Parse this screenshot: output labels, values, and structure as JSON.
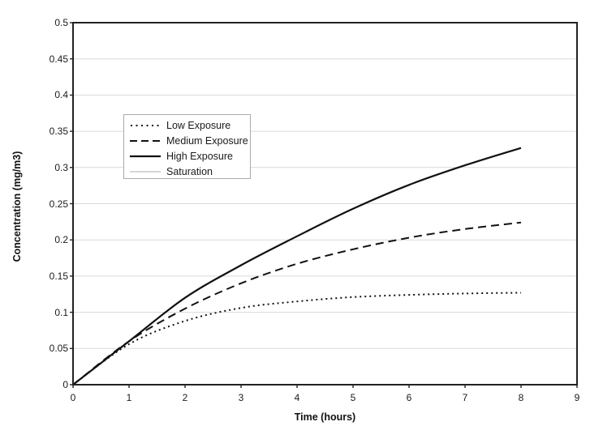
{
  "chart_data": {
    "type": "line",
    "title": "",
    "xlabel": "Time (hours)",
    "ylabel": "Concentration (mg/m3)",
    "xlim": [
      0,
      9
    ],
    "ylim": [
      0,
      0.5
    ],
    "grid": "horizontal-light-gray",
    "legend_position": "inside-upper-left",
    "x_ticks": [
      {
        "value": 0,
        "label": "0"
      },
      {
        "value": 1,
        "label": "1"
      },
      {
        "value": 2,
        "label": "2"
      },
      {
        "value": 3,
        "label": "3"
      },
      {
        "value": 4,
        "label": "4"
      },
      {
        "value": 5,
        "label": "5"
      },
      {
        "value": 6,
        "label": "6"
      },
      {
        "value": 7,
        "label": "7"
      },
      {
        "value": 8,
        "label": "8"
      },
      {
        "value": 9,
        "label": "9"
      }
    ],
    "y_ticks": [
      {
        "value": 0,
        "label": "0"
      },
      {
        "value": 0.05,
        "label": "0.05"
      },
      {
        "value": 0.1,
        "label": "0.1"
      },
      {
        "value": 0.15,
        "label": "0.15"
      },
      {
        "value": 0.2,
        "label": "0.2"
      },
      {
        "value": 0.25,
        "label": "0.25"
      },
      {
        "value": 0.3,
        "label": "0.3"
      },
      {
        "value": 0.35,
        "label": "0.35"
      },
      {
        "value": 0.4,
        "label": "0.4"
      },
      {
        "value": 0.45,
        "label": "0.45"
      },
      {
        "value": 0.5,
        "label": "0.5"
      }
    ],
    "x": [
      0,
      1,
      2,
      3,
      4,
      5,
      6,
      7,
      8
    ],
    "series": [
      {
        "name": "Low Exposure",
        "style": "dotted",
        "color": "#111111",
        "values": [
          0,
          0.056,
          0.088,
          0.106,
          0.115,
          0.121,
          0.124,
          0.126,
          0.127
        ]
      },
      {
        "name": "Medium Exposure",
        "style": "dashed",
        "color": "#111111",
        "values": [
          0,
          0.06,
          0.105,
          0.14,
          0.167,
          0.187,
          0.203,
          0.215,
          0.224
        ]
      },
      {
        "name": "High Exposure",
        "style": "solid",
        "color": "#111111",
        "values": [
          0,
          0.06,
          0.12,
          0.165,
          0.205,
          0.243,
          0.276,
          0.303,
          0.327
        ]
      },
      {
        "name": "Saturation",
        "style": "solid-light",
        "color": "#c9c9c9",
        "values": [
          0.5,
          0.5,
          0.5,
          0.5,
          0.5,
          0.5,
          0.5,
          0.5,
          0.5
        ]
      }
    ],
    "colors": {
      "line": "#1a1a1a",
      "gridline": "#d9d9d9",
      "frame": "#222222",
      "legend_border": "#ababab",
      "saturation_line": "#c9c9c9"
    }
  }
}
